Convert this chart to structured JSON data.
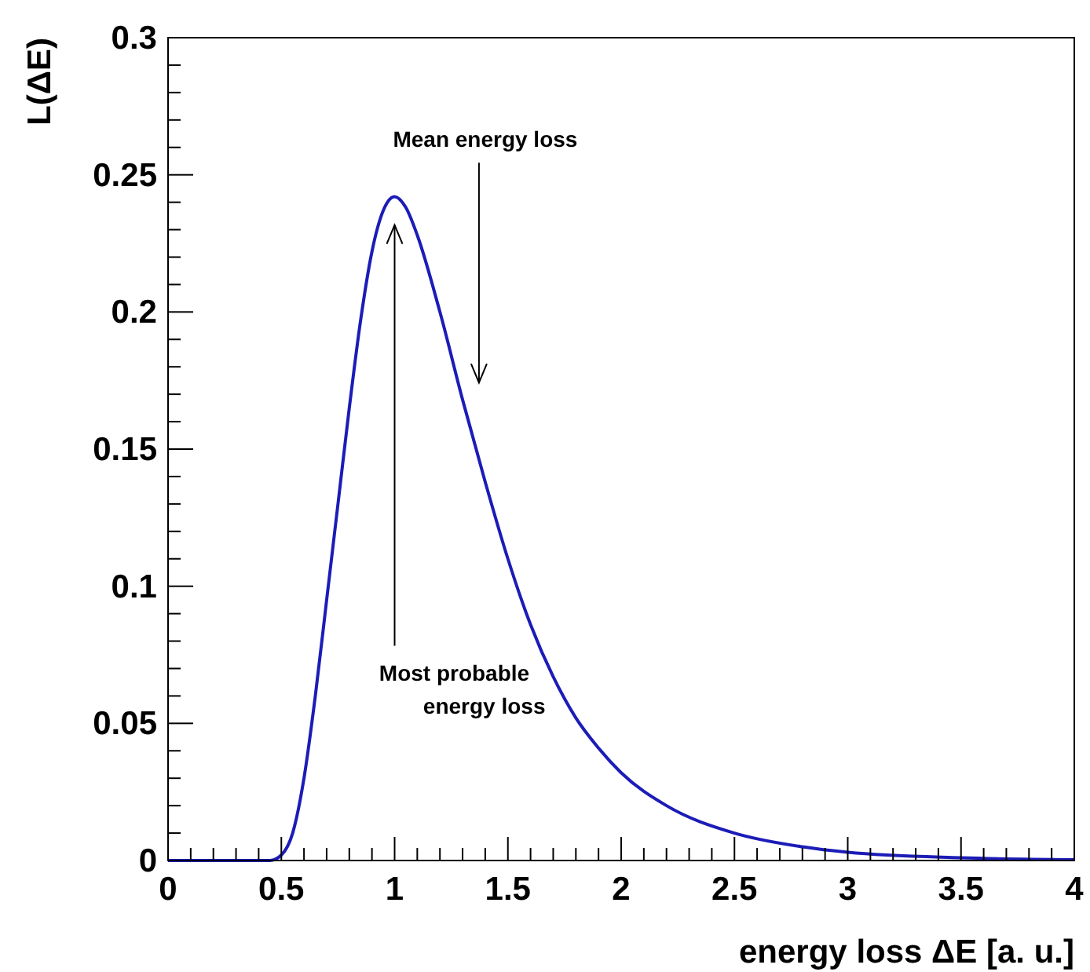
{
  "chart_data": {
    "type": "line",
    "xlabel": "energy loss ΔE [a. u.]",
    "ylabel": "L(ΔE)",
    "xlim": [
      0,
      4
    ],
    "xticks": [
      0,
      0.5,
      1,
      1.5,
      2,
      2.5,
      3,
      3.5,
      4
    ],
    "ylim": [
      0,
      0.3
    ],
    "yticks": [
      0,
      0.05,
      0.1,
      0.15,
      0.2,
      0.25,
      0.3
    ],
    "grid": false,
    "marker": "none",
    "line_style": "solid",
    "series": [
      {
        "color": "#1c1cb8",
        "x": [
          0,
          0.45,
          0.5,
          0.55,
          0.6,
          0.65,
          0.7,
          0.75,
          0.8,
          0.85,
          0.9,
          0.95,
          1.0,
          1.05,
          1.1,
          1.2,
          1.3,
          1.4,
          1.5,
          1.6,
          1.7,
          1.8,
          1.9,
          2.0,
          2.2,
          2.5,
          2.8,
          3.0,
          3.5,
          4.0
        ],
        "values": [
          0,
          0,
          0.002,
          0.01,
          0.03,
          0.06,
          0.095,
          0.13,
          0.165,
          0.197,
          0.222,
          0.237,
          0.242,
          0.238,
          0.228,
          0.2,
          0.168,
          0.138,
          0.11,
          0.086,
          0.067,
          0.052,
          0.041,
          0.032,
          0.02,
          0.01,
          0.005,
          0.003,
          0.001,
          0.0003
        ]
      }
    ],
    "annotations": [
      "Mean energy loss",
      "Most probable energy loss"
    ]
  }
}
